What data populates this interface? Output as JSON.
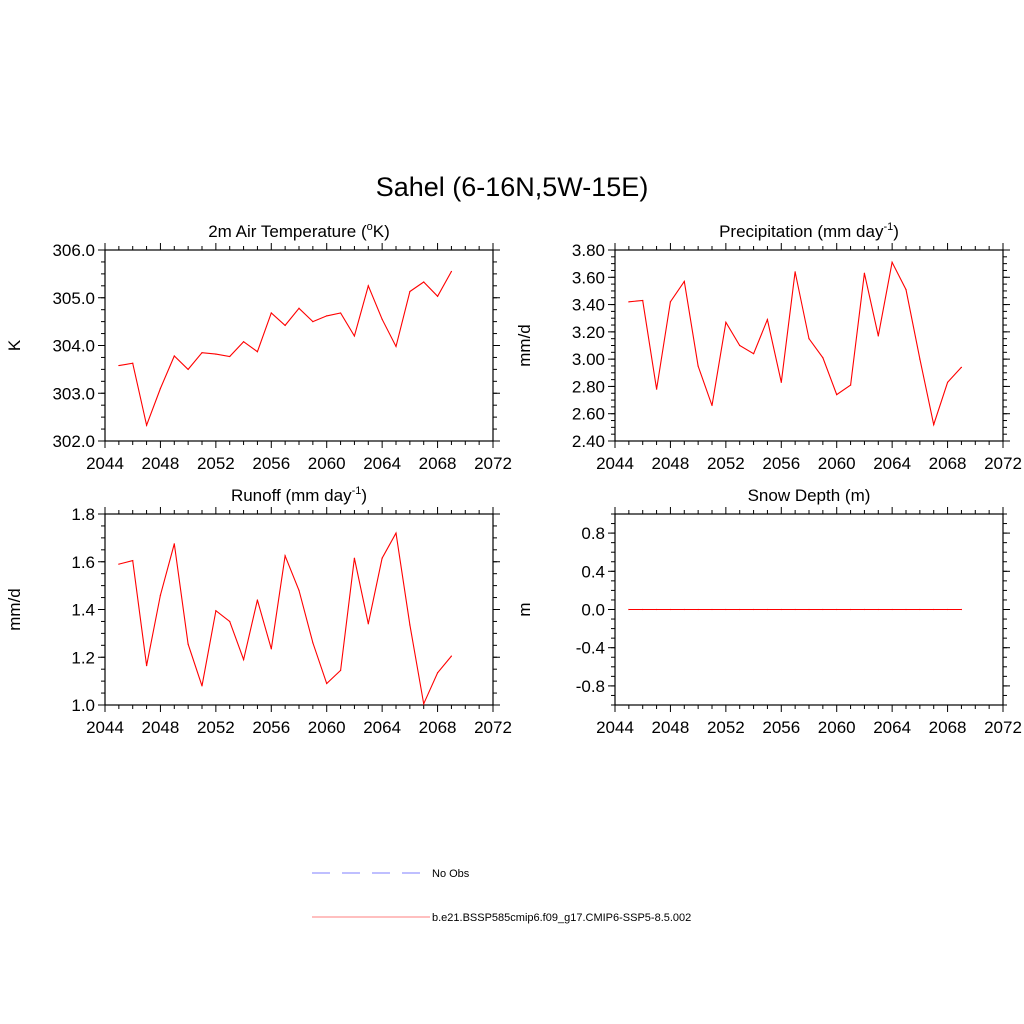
{
  "title": "Sahel (6-16N,5W-15E)",
  "colors": {
    "model": "#ff0000",
    "obs": "#9999ff",
    "axis": "#000000"
  },
  "legend": {
    "obs_label": "No Obs",
    "model_label": "b.e21.BSSP585cmip6.f09_g17.CMIP6-SSP5-8.5.002"
  },
  "chart_data": [
    {
      "type": "line",
      "title": "2m Air Temperature (oK)",
      "title_parts": [
        {
          "t": "2m Air Temperature ("
        },
        {
          "t": "o",
          "sup": true
        },
        {
          "t": "K)"
        }
      ],
      "xlabel": "",
      "ylabel": "K",
      "xlim": [
        2044,
        2072
      ],
      "ylim": [
        302.0,
        306.0
      ],
      "xticks": [
        "2044",
        "2048",
        "2052",
        "2056",
        "2060",
        "2064",
        "2068",
        "2072"
      ],
      "yticks": [
        "302.0",
        "303.0",
        "304.0",
        "305.0",
        "306.0"
      ],
      "x": [
        2045,
        2046,
        2047,
        2048,
        2049,
        2050,
        2051,
        2052,
        2053,
        2054,
        2055,
        2056,
        2057,
        2058,
        2059,
        2060,
        2061,
        2062,
        2063,
        2064,
        2065,
        2066,
        2067,
        2068,
        2069
      ],
      "series": [
        {
          "name": "b.e21.BSSP585cmip6.f09_g17.CMIP6-SSP5-8.5.002",
          "values": [
            303.58,
            303.63,
            302.33,
            303.1,
            303.78,
            303.5,
            303.85,
            303.82,
            303.77,
            304.08,
            303.87,
            304.68,
            304.42,
            304.78,
            304.5,
            304.62,
            304.68,
            304.2,
            305.25,
            304.55,
            303.98,
            305.13,
            305.33,
            305.03,
            305.55
          ]
        }
      ]
    },
    {
      "type": "line",
      "title": "Precipitation (mm day-1)",
      "title_parts": [
        {
          "t": "Precipitation (mm day"
        },
        {
          "t": "-1",
          "sup": true
        },
        {
          "t": ")"
        }
      ],
      "xlabel": "",
      "ylabel": "mm/d",
      "xlim": [
        2044,
        2072
      ],
      "ylim": [
        2.4,
        3.8
      ],
      "xticks": [
        "2044",
        "2048",
        "2052",
        "2056",
        "2060",
        "2064",
        "2068",
        "2072"
      ],
      "yticks": [
        "2.40",
        "2.60",
        "2.80",
        "3.00",
        "3.20",
        "3.40",
        "3.60",
        "3.80"
      ],
      "x": [
        2045,
        2046,
        2047,
        2048,
        2049,
        2050,
        2051,
        2052,
        2053,
        2054,
        2055,
        2056,
        2057,
        2058,
        2059,
        2060,
        2061,
        2062,
        2063,
        2064,
        2065,
        2066,
        2067,
        2068,
        2069
      ],
      "series": [
        {
          "name": "b.e21.BSSP585cmip6.f09_g17.CMIP6-SSP5-8.5.002",
          "values": [
            3.42,
            3.43,
            2.78,
            3.42,
            3.57,
            2.95,
            2.66,
            3.27,
            3.1,
            3.04,
            3.29,
            2.83,
            3.64,
            3.15,
            3.01,
            2.74,
            2.81,
            3.63,
            3.17,
            3.71,
            3.51,
            3.0,
            2.52,
            2.83,
            2.94
          ]
        }
      ]
    },
    {
      "type": "line",
      "title": "Runoff (mm day-1)",
      "title_parts": [
        {
          "t": "Runoff (mm day"
        },
        {
          "t": "-1",
          "sup": true
        },
        {
          "t": ")"
        }
      ],
      "xlabel": "",
      "ylabel": "mm/d",
      "xlim": [
        2044,
        2072
      ],
      "ylim": [
        1.0,
        1.8
      ],
      "xticks": [
        "2044",
        "2048",
        "2052",
        "2056",
        "2060",
        "2064",
        "2068",
        "2072"
      ],
      "yticks": [
        "1.0",
        "1.2",
        "1.4",
        "1.6",
        "1.8"
      ],
      "x": [
        2045,
        2046,
        2047,
        2048,
        2049,
        2050,
        2051,
        2052,
        2053,
        2054,
        2055,
        2056,
        2057,
        2058,
        2059,
        2060,
        2061,
        2062,
        2063,
        2064,
        2065,
        2066,
        2067,
        2068,
        2069
      ],
      "series": [
        {
          "name": "b.e21.BSSP585cmip6.f09_g17.CMIP6-SSP5-8.5.002",
          "values": [
            1.59,
            1.605,
            1.165,
            1.46,
            1.675,
            1.255,
            1.08,
            1.395,
            1.35,
            1.19,
            1.44,
            1.235,
            1.625,
            1.48,
            1.26,
            1.09,
            1.145,
            1.615,
            1.34,
            1.615,
            1.72,
            1.335,
            1.005,
            1.135,
            1.205
          ]
        }
      ]
    },
    {
      "type": "line",
      "title": "Snow Depth (m)",
      "title_parts": [
        {
          "t": "Snow Depth (m)"
        }
      ],
      "xlabel": "",
      "ylabel": "m",
      "xlim": [
        2044,
        2072
      ],
      "ylim": [
        -1.0,
        1.0
      ],
      "xticks": [
        "2044",
        "2048",
        "2052",
        "2056",
        "2060",
        "2064",
        "2068",
        "2072"
      ],
      "yticks": [
        "-0.8",
        "-0.4",
        "0.0",
        "0.4",
        "0.8"
      ],
      "x": [
        2045,
        2046,
        2047,
        2048,
        2049,
        2050,
        2051,
        2052,
        2053,
        2054,
        2055,
        2056,
        2057,
        2058,
        2059,
        2060,
        2061,
        2062,
        2063,
        2064,
        2065,
        2066,
        2067,
        2068,
        2069
      ],
      "series": [
        {
          "name": "b.e21.BSSP585cmip6.f09_g17.CMIP6-SSP5-8.5.002",
          "values": [
            0,
            0,
            0,
            0,
            0,
            0,
            0,
            0,
            0,
            0,
            0,
            0,
            0,
            0,
            0,
            0,
            0,
            0,
            0,
            0,
            0,
            0,
            0,
            0,
            0
          ]
        }
      ]
    }
  ]
}
